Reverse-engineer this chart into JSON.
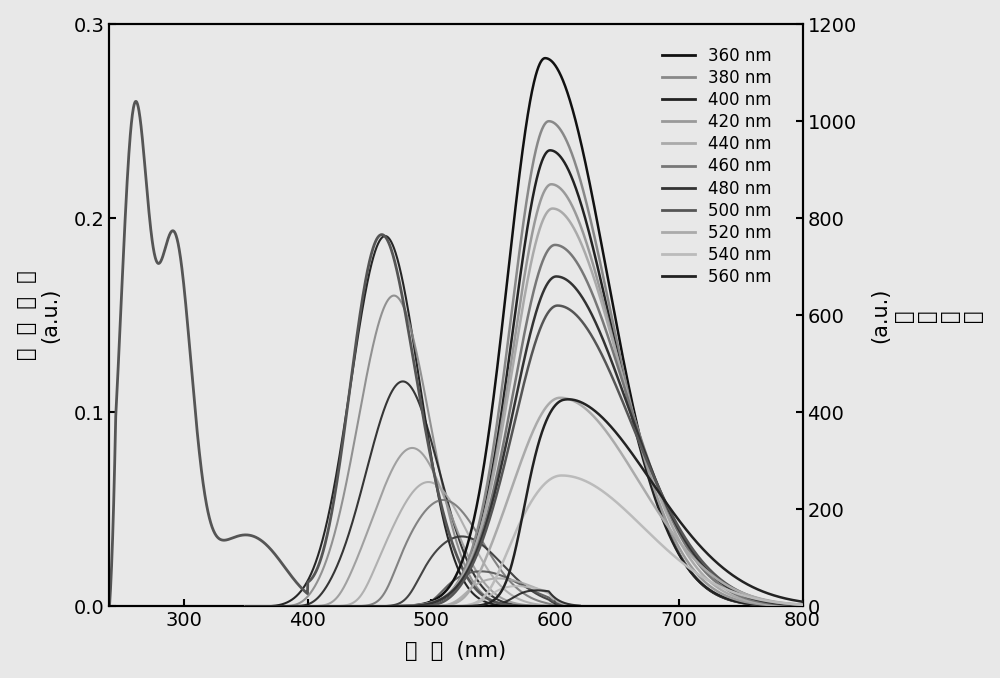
{
  "background_color": "#e8e8e8",
  "xlim": [
    240,
    800
  ],
  "ylim_left": [
    0.0,
    0.3
  ],
  "ylim_right": [
    0,
    1200
  ],
  "xticks": [
    300,
    400,
    500,
    600,
    700,
    800
  ],
  "yticks_left": [
    0.0,
    0.1,
    0.2,
    0.3
  ],
  "yticks_right": [
    0,
    200,
    400,
    600,
    800,
    1000,
    1200
  ],
  "xlabel": "波  长  (nm)",
  "ylabel_left": "吸  收  强  度\n(a.u.)",
  "ylabel_right": "(a.u.)\n强\n度\n光\n荧",
  "legend_labels": [
    "360 nm",
    "380 nm",
    "400 nm",
    "420 nm",
    "440 nm",
    "460 nm",
    "480 nm",
    "500 nm",
    "520 nm",
    "540 nm",
    "560 nm"
  ],
  "excitations": [
    360,
    380,
    400,
    420,
    440,
    460,
    480,
    500,
    520,
    540,
    560
  ],
  "em_peak_wl": [
    592,
    595,
    596,
    597,
    598,
    600,
    601,
    602,
    604,
    605,
    607
  ],
  "em_peak_int": [
    1130,
    1000,
    940,
    870,
    820,
    745,
    680,
    620,
    430,
    270,
    430
  ],
  "em_width_left": [
    30,
    30,
    30,
    31,
    32,
    33,
    34,
    35,
    37,
    38,
    40
  ],
  "em_width_right": [
    50,
    50,
    50,
    52,
    54,
    56,
    58,
    60,
    63,
    66,
    70
  ],
  "em_colors": [
    "#111111",
    "#888888",
    "#222222",
    "#999999",
    "#aaaaaa",
    "#777777",
    "#333333",
    "#555555",
    "#aaaaaa",
    "#bbbbbb",
    "#222222"
  ],
  "abs_color": "#555555",
  "abs_linewidth": 2.0,
  "em_linewidth": 1.8,
  "tick_fontsize": 14,
  "label_fontsize": 15,
  "legend_fontsize": 12
}
